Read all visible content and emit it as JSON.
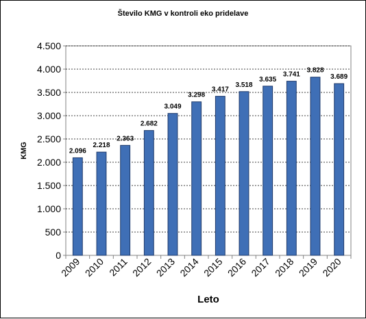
{
  "chart_data": {
    "type": "bar",
    "title": "Število KMG  v kontroli eko pridelave",
    "xlabel": "Leto",
    "ylabel": "KMG",
    "categories": [
      "2009",
      "2010",
      "2011",
      "2012",
      "2013",
      "2014",
      "2015",
      "2016",
      "2017",
      "2018",
      "2019",
      "2020"
    ],
    "values": [
      2096,
      2218,
      2363,
      2682,
      3049,
      3298,
      3417,
      3518,
      3635,
      3741,
      3828,
      3689
    ],
    "data_labels": [
      "2.096",
      "2.218",
      "2.363",
      "2.682",
      "3.049",
      "3.298",
      "3.417",
      "3.518",
      "3.635",
      "3.741",
      "3.828",
      "3.689"
    ],
    "yticks": [
      0,
      500,
      1000,
      1500,
      2000,
      2500,
      3000,
      3500,
      4000,
      4500
    ],
    "ytick_labels": [
      "0",
      "500",
      "1.000",
      "1.500",
      "2.000",
      "2.500",
      "3.000",
      "3.500",
      "4.000",
      "4.500"
    ],
    "ylim": [
      0,
      4500
    ],
    "grid": "horizontal dashed",
    "bar_color": "#3f6fb6",
    "bar_edge_color": "#1f3a6b"
  }
}
